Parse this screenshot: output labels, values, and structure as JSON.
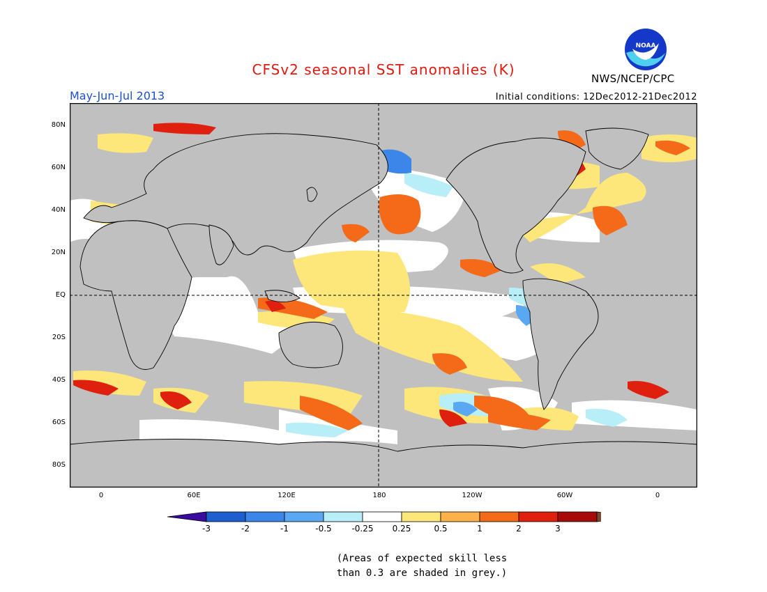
{
  "title": "CFSv2 seasonal SST anomalies (K)",
  "period": "May-Jun-Jul 2013",
  "initial_conditions": "Initial conditions: 12Dec2012-21Dec2012",
  "agency": "NWS/NCEP/CPC",
  "logo_text": "NOAA",
  "note_line1": "(Areas of expected skill less",
  "note_line2": "than 0.3 are shaded in grey.)",
  "colors": {
    "title": "#e0190f",
    "period": "#1a4fd6",
    "skill_grey": "#c0c0c0",
    "land": "#c0c0c0"
  },
  "map": {
    "lat_labels": [
      "80N",
      "60N",
      "40N",
      "20N",
      "EQ",
      "20S",
      "40S",
      "60S",
      "80S"
    ],
    "lon_labels": [
      "0",
      "60E",
      "120E",
      "180",
      "120W",
      "60W",
      "0"
    ]
  },
  "colorbar": {
    "ticks": [
      "-3",
      "-2",
      "-1",
      "-0.5",
      "-0.25",
      "0.25",
      "0.5",
      "1",
      "2",
      "3"
    ],
    "colors": [
      "#3a0b9e",
      "#1e5fd0",
      "#3b86e8",
      "#5aa8f2",
      "#b8eef7",
      "#ffffff",
      "#fde67a",
      "#fdb14b",
      "#f56a18",
      "#e0200e",
      "#a80a0a",
      "#7a4a36"
    ]
  }
}
